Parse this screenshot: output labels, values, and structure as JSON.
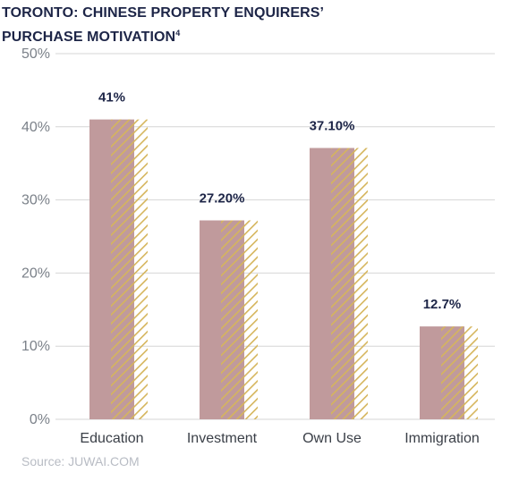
{
  "title_line1": "TORONTO: CHINESE PROPERTY ENQUIRERS’",
  "title_line2": "PURCHASE MOTIVATION",
  "title_footnote": "4",
  "source": "Source: JUWAI.COM",
  "colors": {
    "bar": "#c09a9c",
    "hatch": "#d5b55c",
    "grid": "#d6d6d6",
    "title": "#1d2547"
  },
  "chart_data": {
    "type": "bar",
    "title": "TORONTO: CHINESE PROPERTY ENQUIRERS’ PURCHASE MOTIVATION",
    "categories": [
      "Education",
      "Investment",
      "Own Use",
      "Immigration"
    ],
    "values": [
      41,
      27.2,
      37.1,
      12.7
    ],
    "value_labels": [
      "41%",
      "27.20%",
      "37.10%",
      "12.7%"
    ],
    "yticks": [
      "0%",
      "10%",
      "20%",
      "30%",
      "40%",
      "50%"
    ],
    "ylim": [
      0,
      50
    ],
    "xlabel": "",
    "ylabel": "",
    "grid": true,
    "legend": "none"
  }
}
